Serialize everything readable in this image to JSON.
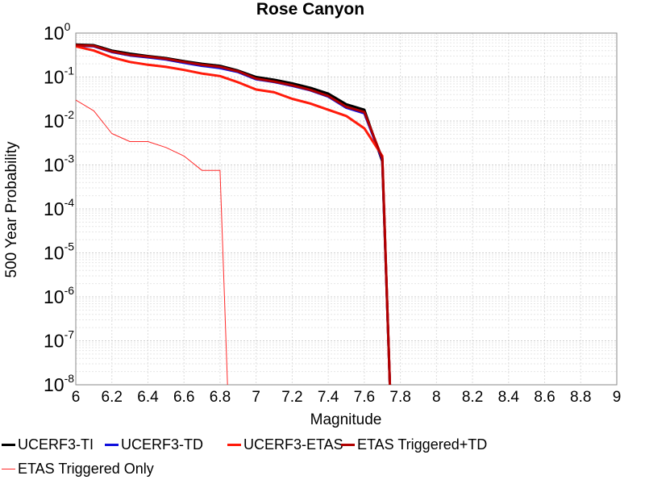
{
  "chart_data": {
    "type": "line",
    "title": "Rose Canyon",
    "xlabel": "Magnitude",
    "ylabel": "500 Year Probability",
    "xlim": [
      6,
      9
    ],
    "ylim": [
      1e-08,
      1
    ],
    "yscale": "log",
    "grid": true,
    "legend_position": "bottom",
    "xticks": [
      "6",
      "6.2",
      "6.4",
      "6.6",
      "6.8",
      "7",
      "7.2",
      "7.4",
      "7.6",
      "7.8",
      "8",
      "8.2",
      "8.4",
      "8.6",
      "8.8",
      "9"
    ],
    "yticks": [
      {
        "base": "10",
        "exp": "0",
        "value": 1
      },
      {
        "base": "10",
        "exp": "-1",
        "value": 0.1
      },
      {
        "base": "10",
        "exp": "-2",
        "value": 0.01
      },
      {
        "base": "10",
        "exp": "-3",
        "value": 0.001
      },
      {
        "base": "10",
        "exp": "-4",
        "value": 0.0001
      },
      {
        "base": "10",
        "exp": "-5",
        "value": 1e-05
      },
      {
        "base": "10",
        "exp": "-6",
        "value": 1e-06
      },
      {
        "base": "10",
        "exp": "-7",
        "value": 1e-07
      },
      {
        "base": "10",
        "exp": "-8",
        "value": 1e-08
      }
    ],
    "series": [
      {
        "name": "UCERF3-TI",
        "color": "#000000",
        "width": 3,
        "x": [
          6.0,
          6.1,
          6.2,
          6.3,
          6.4,
          6.5,
          6.6,
          6.7,
          6.8,
          6.9,
          7.0,
          7.1,
          7.2,
          7.3,
          7.4,
          7.5,
          7.6,
          7.7,
          7.75
        ],
        "y": [
          0.55,
          0.53,
          0.4,
          0.34,
          0.3,
          0.27,
          0.23,
          0.2,
          0.18,
          0.14,
          0.1,
          0.087,
          0.072,
          0.057,
          0.042,
          0.024,
          0.018,
          0.0012,
          1e-09
        ]
      },
      {
        "name": "UCERF3-TD",
        "color": "#1010dd",
        "width": 3,
        "x": [
          6.0,
          6.1,
          6.2,
          6.3,
          6.4,
          6.5,
          6.6,
          6.7,
          6.8,
          6.9,
          7.0,
          7.1,
          7.2,
          7.3,
          7.4,
          7.5,
          7.6,
          7.7,
          7.75
        ],
        "y": [
          0.52,
          0.5,
          0.37,
          0.31,
          0.28,
          0.25,
          0.21,
          0.18,
          0.16,
          0.13,
          0.089,
          0.077,
          0.063,
          0.05,
          0.036,
          0.02,
          0.015,
          0.0013,
          1e-09
        ]
      },
      {
        "name": "UCERF3-ETAS",
        "color": "#ff1a0a",
        "width": 3,
        "x": [
          6.0,
          6.1,
          6.2,
          6.3,
          6.4,
          6.5,
          6.6,
          6.7,
          6.8,
          6.9,
          7.0,
          7.1,
          7.2,
          7.3,
          7.4,
          7.5,
          7.6,
          7.7,
          7.75
        ],
        "y": [
          0.5,
          0.4,
          0.28,
          0.22,
          0.19,
          0.17,
          0.145,
          0.12,
          0.105,
          0.076,
          0.052,
          0.045,
          0.032,
          0.025,
          0.018,
          0.013,
          0.0068,
          0.0016,
          1e-09
        ]
      },
      {
        "name": "ETAS Triggered+TD",
        "color": "#b00000",
        "width": 3,
        "x": [
          6.0,
          6.1,
          6.2,
          6.3,
          6.4,
          6.5,
          6.6,
          6.7,
          6.8,
          6.9,
          7.0,
          7.1,
          7.2,
          7.3,
          7.4,
          7.5,
          7.6,
          7.7,
          7.75
        ],
        "y": [
          0.53,
          0.51,
          0.38,
          0.32,
          0.29,
          0.26,
          0.22,
          0.19,
          0.17,
          0.135,
          0.092,
          0.079,
          0.065,
          0.051,
          0.037,
          0.021,
          0.016,
          0.0014,
          1e-09
        ]
      },
      {
        "name": "ETAS Triggered Only",
        "color": "#ff2a2a",
        "width": 1,
        "x": [
          6.0,
          6.1,
          6.2,
          6.3,
          6.4,
          6.5,
          6.6,
          6.7,
          6.8,
          6.85
        ],
        "y": [
          0.03,
          0.017,
          0.0052,
          0.0034,
          0.0034,
          0.0025,
          0.0016,
          0.00075,
          0.00075,
          1e-09
        ]
      }
    ]
  }
}
